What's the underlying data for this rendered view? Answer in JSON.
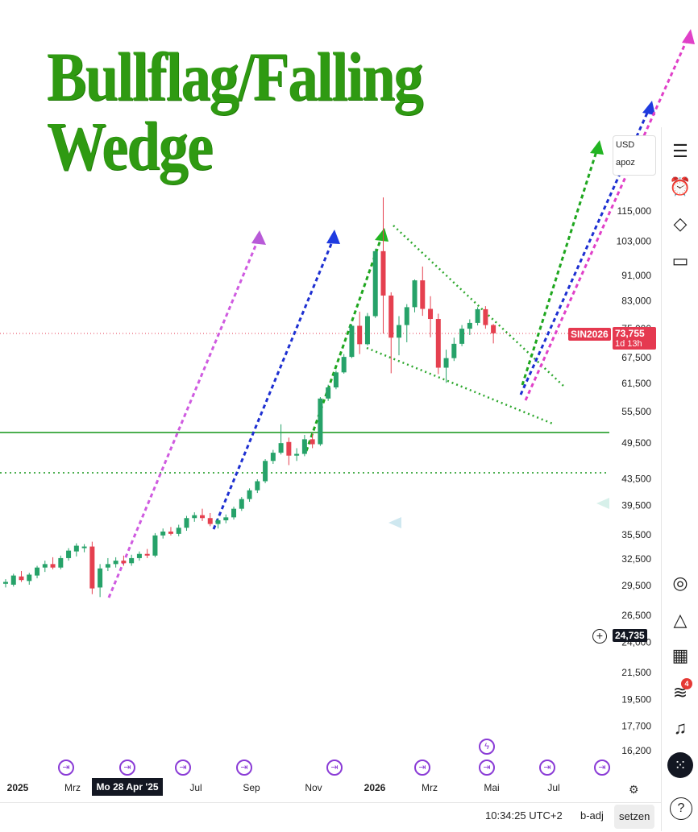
{
  "title": "Bullflag/Falling Wedge",
  "currency": {
    "code": "USD",
    "sub": "apoz"
  },
  "chart_data": {
    "type": "candlestick",
    "y_scale": "log",
    "y_ticks": [
      16200,
      17700,
      19500,
      21500,
      24000,
      26500,
      29500,
      32500,
      35500,
      39500,
      43500,
      49500,
      55500,
      61500,
      67500,
      75000,
      83000,
      91000,
      103000,
      115000
    ],
    "y_tick_labels": [
      "16,200",
      "17,700",
      "19,500",
      "21,500",
      "24,000",
      "26,500",
      "29,500",
      "32,500",
      "35,500",
      "39,500",
      "43,500",
      "49,500",
      "55,500",
      "61,500",
      "67,500",
      "75,000",
      "83,000",
      "91,000",
      "103,000",
      "115,000"
    ],
    "x_labels": [
      "2025",
      "Mrz",
      "Jul",
      "Sep",
      "Nov",
      "2026",
      "Mrz",
      "Mai",
      "Jul"
    ],
    "highlighted_date": "Mo 28 Apr '25",
    "symbol": "SIN2026",
    "last_price": "73,755",
    "countdown": "1d 13h",
    "crosshair_price": "24,735",
    "candles": [
      {
        "o": 29700,
        "h": 30200,
        "l": 29300,
        "c": 29900
      },
      {
        "o": 29600,
        "h": 30800,
        "l": 29400,
        "c": 30600
      },
      {
        "o": 30500,
        "h": 31100,
        "l": 29900,
        "c": 30100
      },
      {
        "o": 30000,
        "h": 30900,
        "l": 29600,
        "c": 30700
      },
      {
        "o": 30600,
        "h": 31700,
        "l": 30300,
        "c": 31500
      },
      {
        "o": 31500,
        "h": 32300,
        "l": 31000,
        "c": 31900
      },
      {
        "o": 31900,
        "h": 32700,
        "l": 31300,
        "c": 31500
      },
      {
        "o": 31500,
        "h": 32900,
        "l": 31300,
        "c": 32600
      },
      {
        "o": 32600,
        "h": 33800,
        "l": 32300,
        "c": 33500
      },
      {
        "o": 33400,
        "h": 34400,
        "l": 32800,
        "c": 34100
      },
      {
        "o": 33800,
        "h": 34300,
        "l": 33300,
        "c": 34000
      },
      {
        "o": 34000,
        "h": 34600,
        "l": 28600,
        "c": 29200
      },
      {
        "o": 29300,
        "h": 31900,
        "l": 28300,
        "c": 31400
      },
      {
        "o": 31500,
        "h": 32600,
        "l": 31100,
        "c": 31900
      },
      {
        "o": 31900,
        "h": 32700,
        "l": 31500,
        "c": 32300
      },
      {
        "o": 32300,
        "h": 32900,
        "l": 31700,
        "c": 32000
      },
      {
        "o": 32000,
        "h": 33000,
        "l": 31700,
        "c": 32600
      },
      {
        "o": 32600,
        "h": 33400,
        "l": 32300,
        "c": 33100
      },
      {
        "o": 33100,
        "h": 33700,
        "l": 32600,
        "c": 32900
      },
      {
        "o": 32900,
        "h": 35700,
        "l": 32700,
        "c": 35400
      },
      {
        "o": 35400,
        "h": 36300,
        "l": 35000,
        "c": 35900
      },
      {
        "o": 35900,
        "h": 36500,
        "l": 35400,
        "c": 35600
      },
      {
        "o": 35600,
        "h": 36800,
        "l": 35300,
        "c": 36400
      },
      {
        "o": 36400,
        "h": 38000,
        "l": 36000,
        "c": 37700
      },
      {
        "o": 37700,
        "h": 38500,
        "l": 37200,
        "c": 38100
      },
      {
        "o": 38100,
        "h": 39000,
        "l": 37300,
        "c": 37700
      },
      {
        "o": 37700,
        "h": 38400,
        "l": 36600,
        "c": 36900
      },
      {
        "o": 36900,
        "h": 37700,
        "l": 36300,
        "c": 37400
      },
      {
        "o": 37400,
        "h": 38200,
        "l": 37000,
        "c": 37800
      },
      {
        "o": 37800,
        "h": 39300,
        "l": 37500,
        "c": 39000
      },
      {
        "o": 39000,
        "h": 40700,
        "l": 38700,
        "c": 40400
      },
      {
        "o": 40400,
        "h": 42000,
        "l": 40000,
        "c": 41700
      },
      {
        "o": 41700,
        "h": 43400,
        "l": 41300,
        "c": 43100
      },
      {
        "o": 43100,
        "h": 46700,
        "l": 42800,
        "c": 46400
      },
      {
        "o": 46400,
        "h": 48300,
        "l": 45900,
        "c": 47800
      },
      {
        "o": 47800,
        "h": 53000,
        "l": 47500,
        "c": 49500
      },
      {
        "o": 49700,
        "h": 50500,
        "l": 45700,
        "c": 47300
      },
      {
        "o": 47300,
        "h": 48600,
        "l": 46400,
        "c": 47600
      },
      {
        "o": 47600,
        "h": 51000,
        "l": 47200,
        "c": 50200
      },
      {
        "o": 50200,
        "h": 51200,
        "l": 48600,
        "c": 49300
      },
      {
        "o": 49300,
        "h": 58500,
        "l": 49000,
        "c": 58200
      },
      {
        "o": 58200,
        "h": 61200,
        "l": 57700,
        "c": 60600
      },
      {
        "o": 60600,
        "h": 64400,
        "l": 60200,
        "c": 64000
      },
      {
        "o": 64000,
        "h": 68400,
        "l": 63700,
        "c": 67700
      },
      {
        "o": 67700,
        "h": 76200,
        "l": 67400,
        "c": 75800
      },
      {
        "o": 75800,
        "h": 79800,
        "l": 68400,
        "c": 70900
      },
      {
        "o": 70900,
        "h": 79400,
        "l": 70600,
        "c": 78500
      },
      {
        "o": 78500,
        "h": 100300,
        "l": 78000,
        "c": 99400
      },
      {
        "o": 99400,
        "h": 120800,
        "l": 73700,
        "c": 84600
      },
      {
        "o": 84600,
        "h": 85600,
        "l": 63800,
        "c": 72600
      },
      {
        "o": 72600,
        "h": 78500,
        "l": 68100,
        "c": 76000
      },
      {
        "o": 76000,
        "h": 82000,
        "l": 71400,
        "c": 81100
      },
      {
        "o": 81100,
        "h": 89700,
        "l": 79600,
        "c": 89400
      },
      {
        "o": 89400,
        "h": 94000,
        "l": 78600,
        "c": 80600
      },
      {
        "o": 80600,
        "h": 84400,
        "l": 72700,
        "c": 77700
      },
      {
        "o": 77700,
        "h": 79200,
        "l": 63600,
        "c": 65100
      },
      {
        "o": 65100,
        "h": 69500,
        "l": 61600,
        "c": 67400
      },
      {
        "o": 67400,
        "h": 72600,
        "l": 66700,
        "c": 71000
      },
      {
        "o": 71000,
        "h": 76000,
        "l": 70400,
        "c": 75000
      },
      {
        "o": 75000,
        "h": 77600,
        "l": 73300,
        "c": 76600
      },
      {
        "o": 76600,
        "h": 81100,
        "l": 75900,
        "c": 80500
      },
      {
        "o": 80500,
        "h": 81400,
        "l": 75000,
        "c": 76000
      },
      {
        "o": 76000,
        "h": 76300,
        "l": 71100,
        "c": 73755
      }
    ]
  },
  "sidebar": {
    "alert_count": "4"
  },
  "bottom": {
    "time": "10:34:25 UTC+2",
    "adj": "b-adj",
    "setzen": "setzen"
  }
}
